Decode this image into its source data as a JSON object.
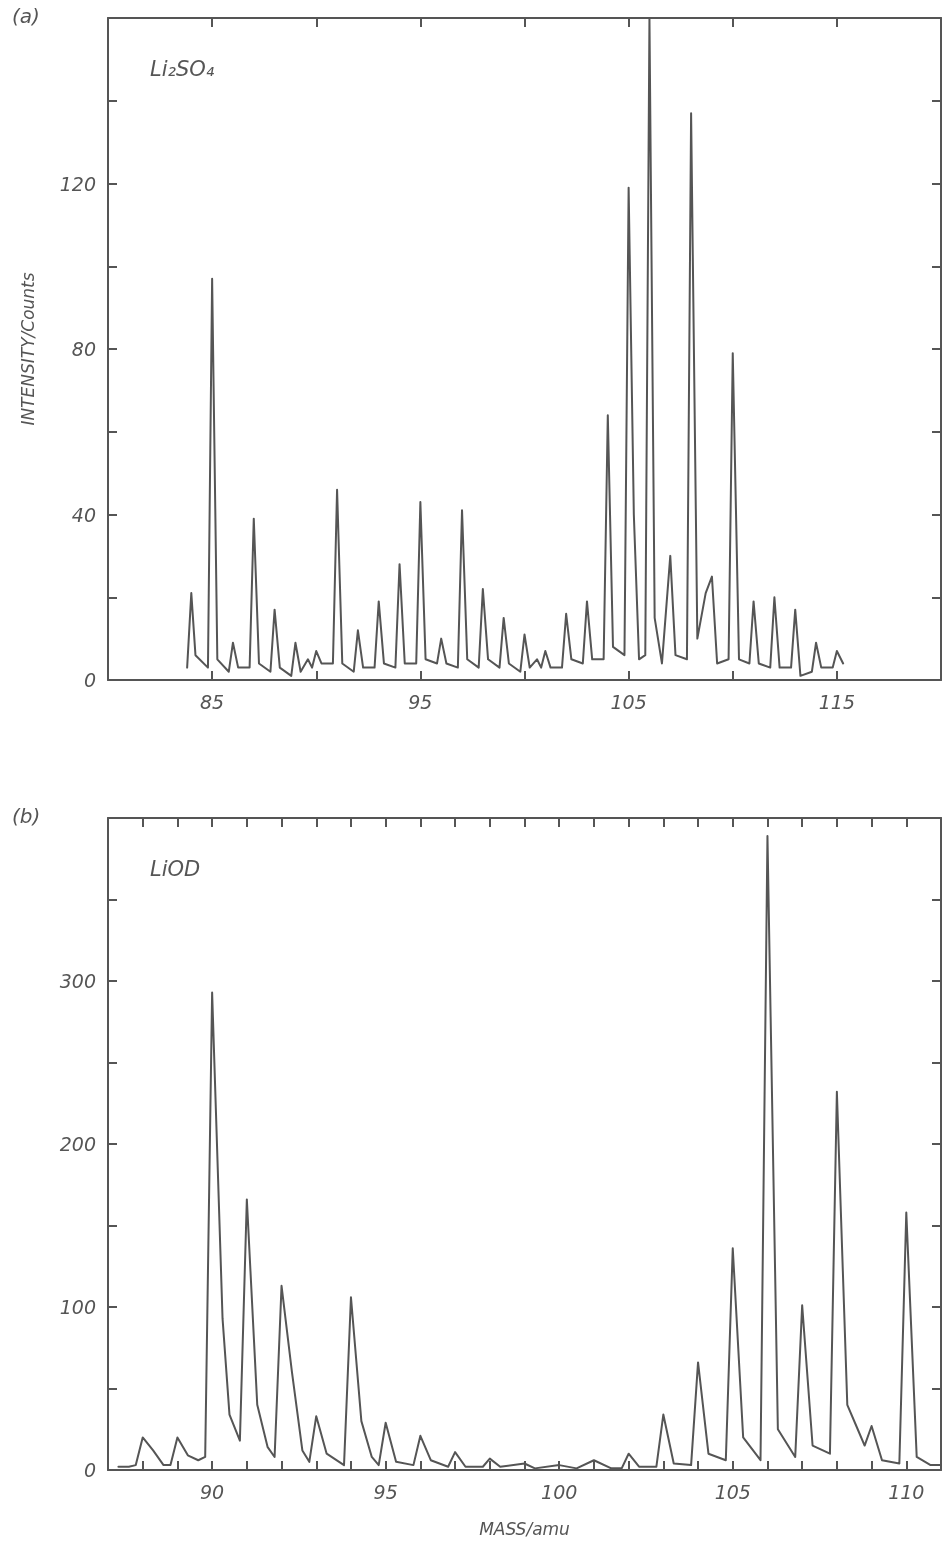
{
  "chart_data": [
    {
      "type": "line",
      "title": "(a)",
      "ylabel": "INTENSITY/Counts",
      "annotations": [
        "Li₂SO₄"
      ],
      "color": "#555555",
      "marker": "none",
      "line_style": "solid",
      "xlim": [
        80,
        120
      ],
      "xticks": [
        {
          "value": 80,
          "label": null
        },
        85,
        {
          "value": 90,
          "label": null
        },
        95,
        {
          "value": 100,
          "label": null
        },
        105,
        {
          "value": 110,
          "label": null
        },
        115,
        {
          "value": 120,
          "label": null
        }
      ],
      "ylim": [
        0,
        160
      ],
      "yticks": [
        0,
        {
          "value": 20,
          "label": null
        },
        40,
        {
          "value": 60,
          "label": null
        },
        80,
        {
          "value": 100,
          "label": null
        },
        120,
        {
          "value": 140,
          "label": null
        },
        {
          "value": 160,
          "label": null
        }
      ],
      "x": [
        83.8,
        84,
        84.2,
        84.8,
        85,
        85.25,
        85.8,
        86,
        86.25,
        86.8,
        87,
        87.25,
        87.8,
        88,
        88.25,
        88.8,
        89,
        89.25,
        89.6,
        89.8,
        90,
        90.25,
        90.8,
        91,
        91.25,
        91.8,
        92,
        92.25,
        92.8,
        93,
        93.25,
        93.8,
        94,
        94.25,
        94.8,
        95,
        95.25,
        95.8,
        96,
        96.25,
        96.8,
        97,
        97.25,
        97.8,
        98,
        98.25,
        98.8,
        99,
        99.25,
        99.8,
        100,
        100.25,
        100.6,
        100.8,
        101,
        101.25,
        101.8,
        102,
        102.25,
        102.8,
        103,
        103.25,
        103.8,
        104,
        104.25,
        104.8,
        105,
        105.25,
        105.5,
        105.8,
        106,
        106.25,
        106.6,
        107,
        107.25,
        107.8,
        108,
        108.3,
        108.7,
        109,
        109.25,
        109.8,
        110,
        110.3,
        110.8,
        111,
        111.25,
        111.8,
        112,
        112.25,
        112.8,
        113,
        113.25,
        113.8,
        114,
        114.25,
        114.8,
        115,
        115.3
      ],
      "values": [
        3,
        21,
        6,
        3,
        97,
        5,
        2,
        9,
        3,
        3,
        39,
        4,
        2,
        17,
        3,
        1,
        9,
        2,
        5,
        3,
        7,
        4,
        4,
        46,
        4,
        2,
        12,
        3,
        3,
        19,
        4,
        3,
        28,
        4,
        4,
        43,
        5,
        4,
        10,
        4,
        3,
        41,
        5,
        3,
        22,
        5,
        3,
        15,
        4,
        2,
        11,
        3,
        5,
        3,
        7,
        3,
        3,
        16,
        5,
        4,
        19,
        5,
        5,
        64,
        8,
        6,
        119,
        40,
        5,
        6,
        160,
        15,
        4,
        30,
        6,
        5,
        137,
        10,
        21,
        25,
        4,
        5,
        79,
        5,
        4,
        19,
        4,
        3,
        20,
        3,
        3,
        17,
        1,
        2,
        9,
        3,
        3,
        7,
        4
      ]
    },
    {
      "type": "line",
      "title": "(b)",
      "xlabel": "MASS/amu",
      "annotations": [
        "LiOD"
      ],
      "color": "#555555",
      "marker": "none",
      "line_style": "solid",
      "xlim": [
        87,
        111
      ],
      "xticks": [
        {
          "value": 87,
          "label": null
        },
        {
          "value": 88,
          "label": null
        },
        {
          "value": 89,
          "label": null
        },
        90,
        {
          "value": 91,
          "label": null
        },
        {
          "value": 92,
          "label": null
        },
        {
          "value": 93,
          "label": null
        },
        {
          "value": 94,
          "label": null
        },
        95,
        {
          "value": 96,
          "label": null
        },
        {
          "value": 97,
          "label": null
        },
        {
          "value": 98,
          "label": null
        },
        {
          "value": 99,
          "label": null
        },
        100,
        {
          "value": 101,
          "label": null
        },
        {
          "value": 102,
          "label": null
        },
        {
          "value": 103,
          "label": null
        },
        {
          "value": 104,
          "label": null
        },
        105,
        {
          "value": 106,
          "label": null
        },
        {
          "value": 107,
          "label": null
        },
        {
          "value": 108,
          "label": null
        },
        {
          "value": 109,
          "label": null
        },
        110,
        {
          "value": 111,
          "label": null
        }
      ],
      "ylim": [
        0,
        400
      ],
      "yticks": [
        0,
        {
          "value": 50,
          "label": null
        },
        100,
        {
          "value": 150,
          "label": null
        },
        200,
        {
          "value": 250,
          "label": null
        },
        300,
        {
          "value": 350,
          "label": null
        },
        {
          "value": 400,
          "label": null
        }
      ],
      "x": [
        87.3,
        87.6,
        87.8,
        88,
        88.3,
        88.6,
        88.8,
        89,
        89.3,
        89.6,
        89.8,
        90,
        90.3,
        90.5,
        90.8,
        91,
        91.3,
        91.6,
        91.8,
        92,
        92.3,
        92.6,
        92.8,
        93,
        93.3,
        93.8,
        94,
        94.3,
        94.6,
        94.8,
        95,
        95.3,
        95.8,
        96,
        96.3,
        96.8,
        97,
        97.3,
        97.8,
        98,
        98.3,
        99,
        99.3,
        100,
        100.5,
        101,
        101.5,
        101.8,
        102,
        102.3,
        102.8,
        103,
        103.3,
        103.8,
        104,
        104.3,
        104.8,
        105,
        105.3,
        105.8,
        106,
        106.3,
        106.8,
        107,
        107.3,
        107.8,
        108,
        108.3,
        108.6,
        108.8,
        109,
        109.3,
        109.8,
        110,
        110.3,
        110.7,
        111
      ],
      "values": [
        2,
        2,
        3,
        20,
        12,
        3,
        3,
        20,
        9,
        6,
        8,
        293,
        93,
        34,
        18,
        166,
        40,
        14,
        8,
        113,
        60,
        12,
        5,
        33,
        10,
        3,
        106,
        30,
        8,
        3,
        29,
        5,
        3,
        21,
        6,
        2,
        11,
        2,
        2,
        7,
        2,
        4,
        1,
        3,
        1,
        6,
        1,
        1,
        10,
        2,
        2,
        34,
        4,
        3,
        66,
        10,
        6,
        136,
        20,
        6,
        389,
        25,
        8,
        101,
        15,
        10,
        232,
        40,
        25,
        15,
        27,
        6,
        4,
        158,
        8,
        3,
        3
      ]
    }
  ]
}
